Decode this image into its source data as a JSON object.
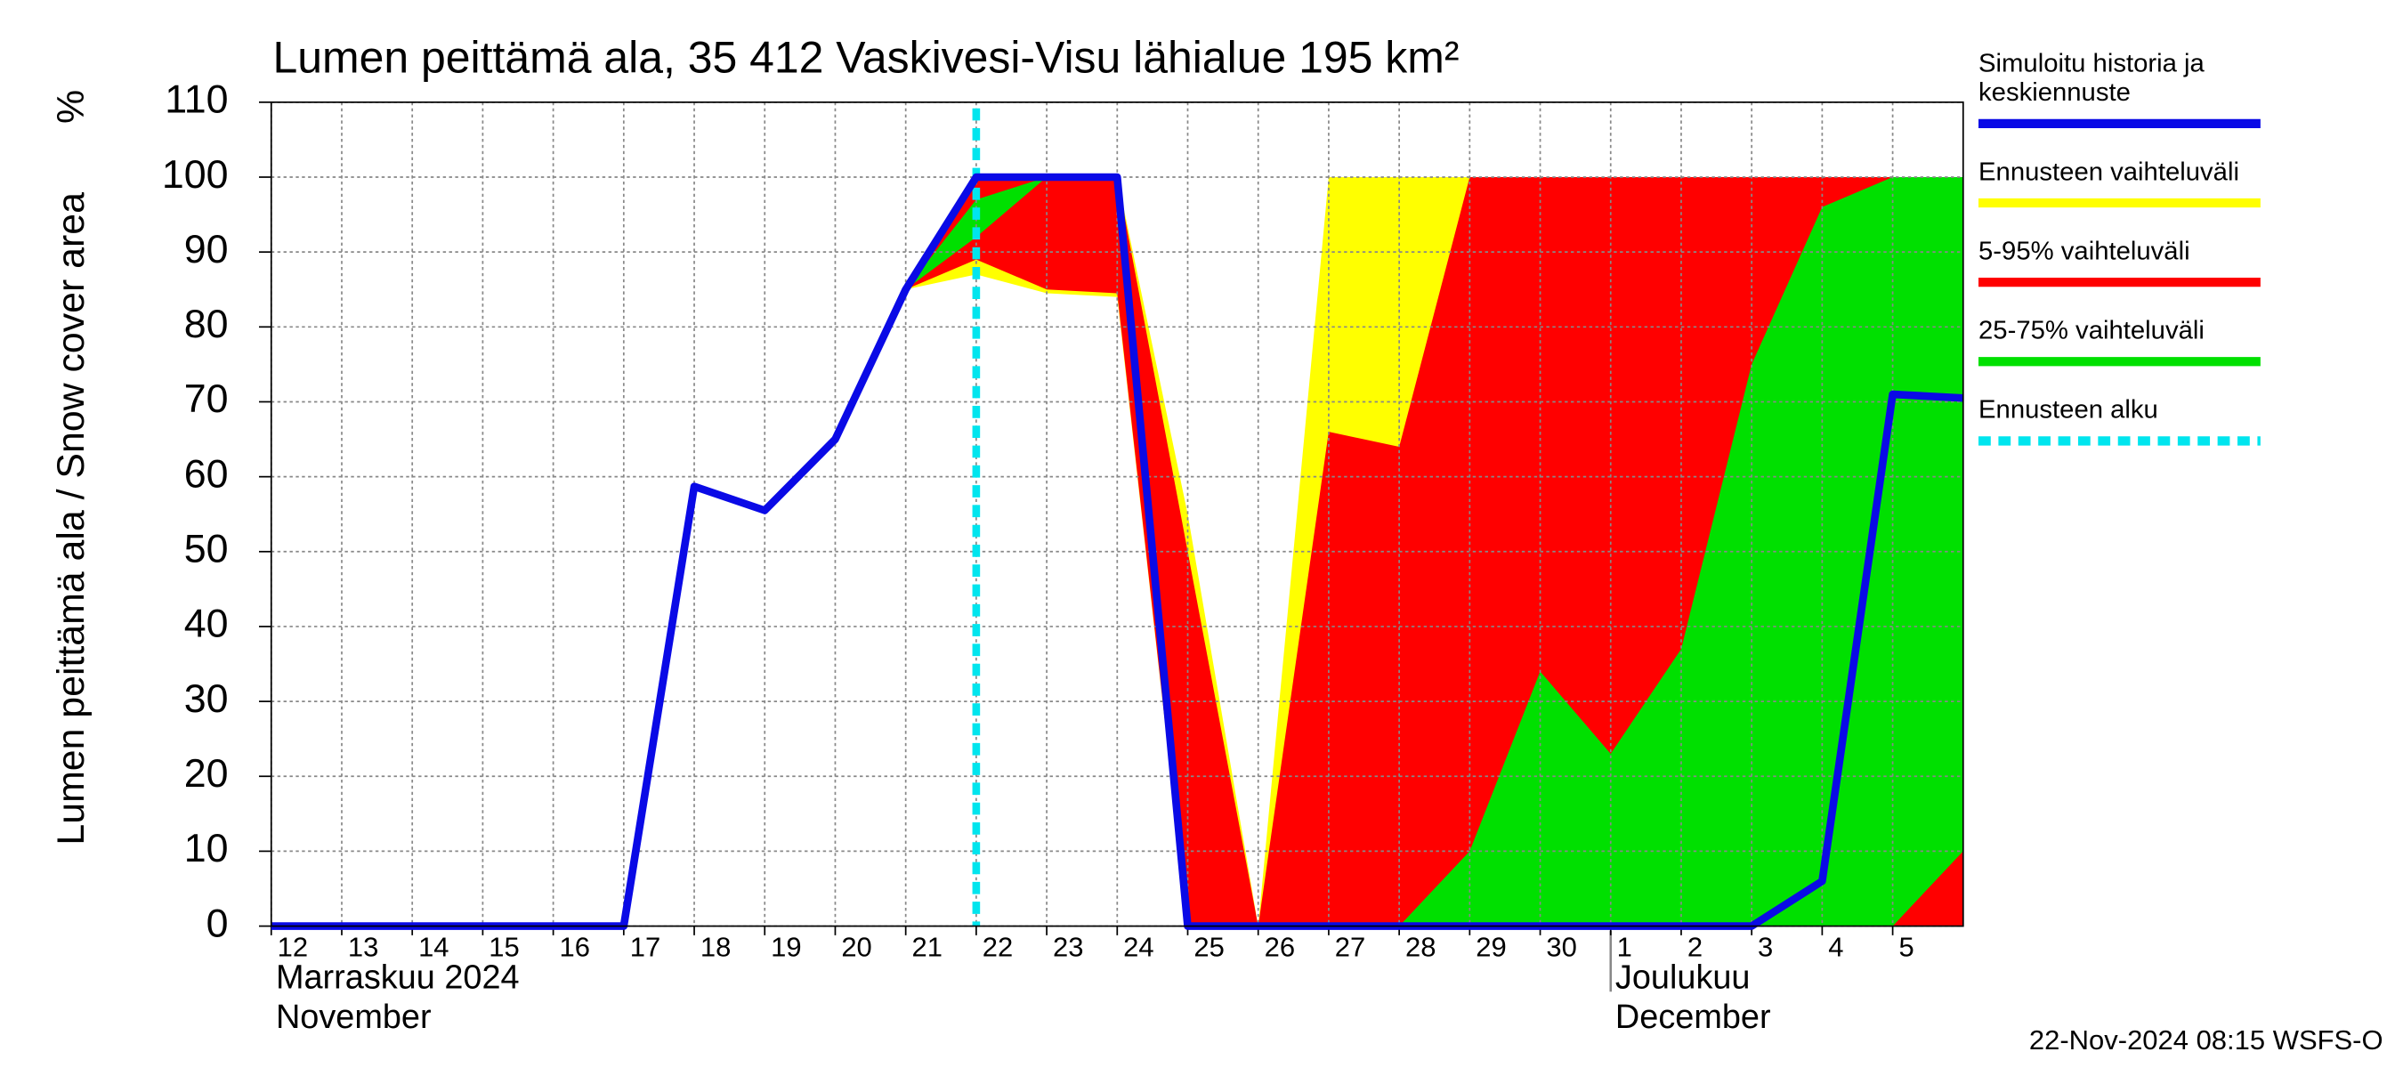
{
  "chart_data": {
    "type": "line",
    "title": "Lumen peittämä ala, 35 412 Vaskivesi-Visu lähialue 195 km²",
    "y_label": "Lumen peittämä ala / Snow cover area",
    "y_unit": "%",
    "month_labels": [
      {
        "x": 0,
        "lines": [
          "Marraskuu 2024",
          "November"
        ]
      },
      {
        "x": 19,
        "lines": [
          "Joulukuu",
          "December"
        ]
      }
    ],
    "footer": "22-Nov-2024 08:15 WSFS-O",
    "xlim": [
      0,
      24
    ],
    "ylim": [
      0,
      110
    ],
    "yticks": [
      0,
      10,
      20,
      30,
      40,
      50,
      60,
      70,
      80,
      90,
      100,
      110
    ],
    "xticks": [
      {
        "value": 0,
        "label": "12"
      },
      {
        "value": 1,
        "label": "13"
      },
      {
        "value": 2,
        "label": "14"
      },
      {
        "value": 3,
        "label": "15"
      },
      {
        "value": 4,
        "label": "16"
      },
      {
        "value": 5,
        "label": "17"
      },
      {
        "value": 6,
        "label": "18"
      },
      {
        "value": 7,
        "label": "19"
      },
      {
        "value": 8,
        "label": "20"
      },
      {
        "value": 9,
        "label": "21"
      },
      {
        "value": 10,
        "label": "22"
      },
      {
        "value": 11,
        "label": "23"
      },
      {
        "value": 12,
        "label": "24"
      },
      {
        "value": 13,
        "label": "25"
      },
      {
        "value": 14,
        "label": "26"
      },
      {
        "value": 15,
        "label": "27"
      },
      {
        "value": 16,
        "label": "28"
      },
      {
        "value": 17,
        "label": "29"
      },
      {
        "value": 18,
        "label": "30"
      },
      {
        "value": 19,
        "label": "1"
      },
      {
        "value": 20,
        "label": "2"
      },
      {
        "value": 21,
        "label": "3"
      },
      {
        "value": 22,
        "label": "4"
      },
      {
        "value": 23,
        "label": "5"
      }
    ],
    "grid": true,
    "x": [
      0,
      1,
      2,
      3,
      4,
      5,
      6,
      7,
      8,
      9,
      10,
      11,
      12,
      13,
      14,
      15,
      16,
      17,
      18,
      19,
      20,
      21,
      22,
      23,
      24
    ],
    "bands": [
      {
        "name": "Ennusteen vaihteluväli",
        "color": "#ffff00",
        "upper": [
          null,
          null,
          null,
          null,
          null,
          null,
          null,
          null,
          null,
          85,
          100,
          100,
          100,
          55,
          0,
          100,
          100,
          100,
          100,
          100,
          100,
          100,
          100,
          100,
          100
        ],
        "lower": [
          null,
          null,
          null,
          null,
          null,
          null,
          null,
          null,
          null,
          85,
          87,
          84.5,
          84,
          0,
          0,
          0,
          0,
          0,
          0,
          0,
          0,
          0,
          0,
          0,
          0
        ]
      },
      {
        "name": "5-95% vaihteluväli",
        "color": "#ff0000",
        "upper": [
          null,
          null,
          null,
          null,
          null,
          null,
          null,
          null,
          null,
          85,
          100,
          100,
          100,
          50,
          0,
          66,
          64,
          100,
          100,
          100,
          100,
          100,
          100,
          100,
          100
        ],
        "lower": [
          null,
          null,
          null,
          null,
          null,
          null,
          null,
          null,
          null,
          85,
          89,
          85,
          84.5,
          0,
          0,
          0,
          0,
          0,
          0,
          0,
          0,
          0,
          0,
          0,
          0
        ]
      },
      {
        "name": "25-75% vaihteluväli",
        "color": "#00e000",
        "upper": [
          null,
          null,
          null,
          null,
          null,
          null,
          null,
          null,
          null,
          85,
          97,
          100,
          100,
          0,
          0,
          0,
          0,
          10,
          34,
          23,
          37,
          75,
          96,
          100,
          100
        ],
        "lower": [
          null,
          null,
          null,
          null,
          null,
          null,
          null,
          null,
          null,
          85,
          92,
          100,
          100,
          0,
          0,
          0,
          0,
          0,
          0,
          0,
          0,
          0,
          0,
          0,
          10
        ]
      }
    ],
    "series": [
      {
        "name": "Simuloitu historia ja keskiennuste",
        "color": "#0a0ae6",
        "values": [
          0,
          0,
          0,
          0,
          0,
          0,
          58.7,
          55.5,
          65,
          85,
          100,
          100,
          100,
          0,
          0,
          0,
          0,
          0,
          0,
          0,
          0,
          0,
          6,
          71,
          70.5
        ]
      }
    ],
    "forecast_start": {
      "name": "Ennusteen alku",
      "x": 10,
      "color": "#00e5ee"
    }
  }
}
